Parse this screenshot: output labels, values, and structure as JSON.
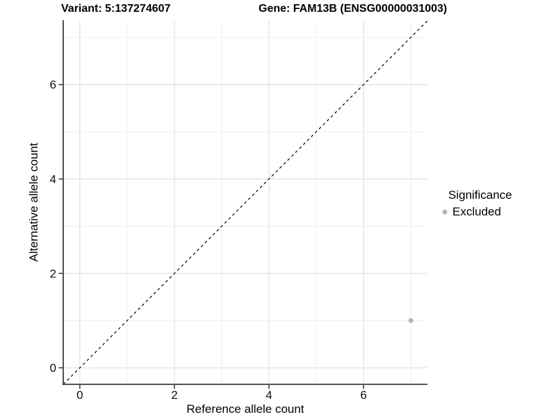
{
  "titles": {
    "variant": "Variant: 5:137274607",
    "gene": "Gene: FAM13B (ENSG00000031003)"
  },
  "axes": {
    "x": {
      "label": "Reference allele count",
      "tick_labels": [
        "0",
        "2",
        "4",
        "6"
      ]
    },
    "y": {
      "label": "Alternative allele count",
      "tick_labels": [
        "0",
        "2",
        "4",
        "6"
      ]
    }
  },
  "legend": {
    "title": "Significance",
    "items": [
      {
        "label": "Excluded",
        "color": "#b4b4b4"
      }
    ]
  },
  "colors": {
    "background": "#ffffff",
    "major_grid": "#e3e3e3",
    "minor_grid": "#efefef",
    "axis_line": "#3c3c3c",
    "tick_text": "#111111",
    "identity_line": "#000000",
    "point": "#b4b4b4"
  },
  "chart_data": {
    "type": "scatter",
    "title": "Variant: 5:137274607 | Gene: FAM13B (ENSG00000031003)",
    "xlabel": "Reference allele count",
    "ylabel": "Alternative allele count",
    "xlim": [
      -0.35,
      7.35
    ],
    "ylim": [
      -0.35,
      7.35
    ],
    "x_ticks": [
      0,
      2,
      4,
      6
    ],
    "y_ticks": [
      0,
      2,
      4,
      6
    ],
    "x_minor_gridlines": [
      1,
      3,
      5,
      7
    ],
    "y_minor_gridlines": [
      1,
      3,
      5,
      7
    ],
    "grid": "major and minor gridlines on white panel",
    "legend_position": "right",
    "legend_title": "Significance",
    "series": [
      {
        "name": "Excluded",
        "color": "#b4b4b4",
        "points": [
          {
            "x": 7,
            "y": 1
          }
        ]
      }
    ],
    "identity_line": {
      "description": "dashed y = x reference line",
      "style": "dashed",
      "color": "#000000",
      "from": [
        -0.35,
        -0.35
      ],
      "to": [
        7.35,
        7.35
      ]
    }
  }
}
